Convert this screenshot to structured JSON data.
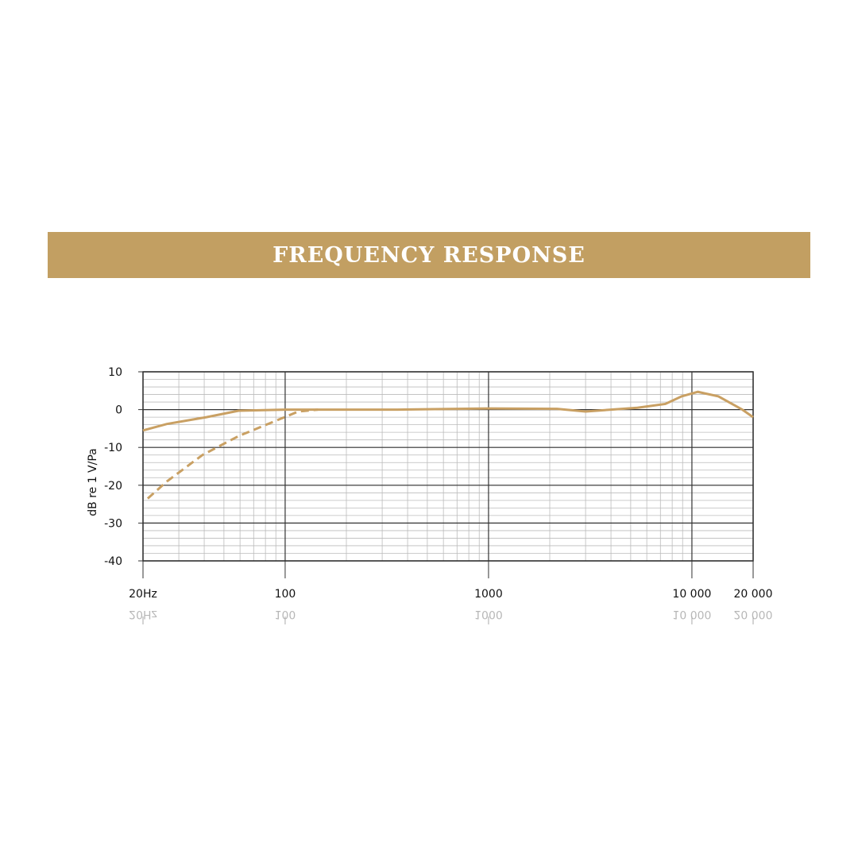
{
  "chart_data": {
    "type": "line",
    "title": "FREQUENCY RESPONSE",
    "y_label": "dB re 1 V/Pa",
    "x_scale": "log",
    "xlim": [
      20,
      20000
    ],
    "ylim": [
      -40,
      10
    ],
    "xticks": [
      {
        "value": 20,
        "label": "20Hz"
      },
      100,
      1000,
      {
        "value": 10000,
        "label": "10 000"
      },
      {
        "value": 20000,
        "label": "20 000"
      }
    ],
    "yticks": [
      -40,
      -30,
      -20,
      -10,
      0,
      10
    ],
    "grid": true,
    "series": [
      {
        "color": "#c9a063",
        "style": "solid",
        "x": [
          20,
          26.2,
          41,
          59,
          100,
          145,
          358,
          1000,
          2174,
          3000,
          5400,
          7400,
          8900,
          10700,
          13500,
          17700,
          20000
        ],
        "values": [
          -5.5,
          -3.8,
          -2,
          -0.3,
          0,
          0,
          0,
          0.3,
          0.2,
          -0.5,
          0.5,
          1.5,
          3.5,
          4.7,
          3.5,
          0,
          -2
        ]
      },
      {
        "color": "#c9a063",
        "style": "dashed",
        "x": [
          21.1,
          26.2,
          39.2,
          59,
          85,
          116,
          145
        ],
        "values": [
          -23.5,
          -19,
          -12,
          -7,
          -3.5,
          -0.5,
          0
        ]
      }
    ]
  }
}
